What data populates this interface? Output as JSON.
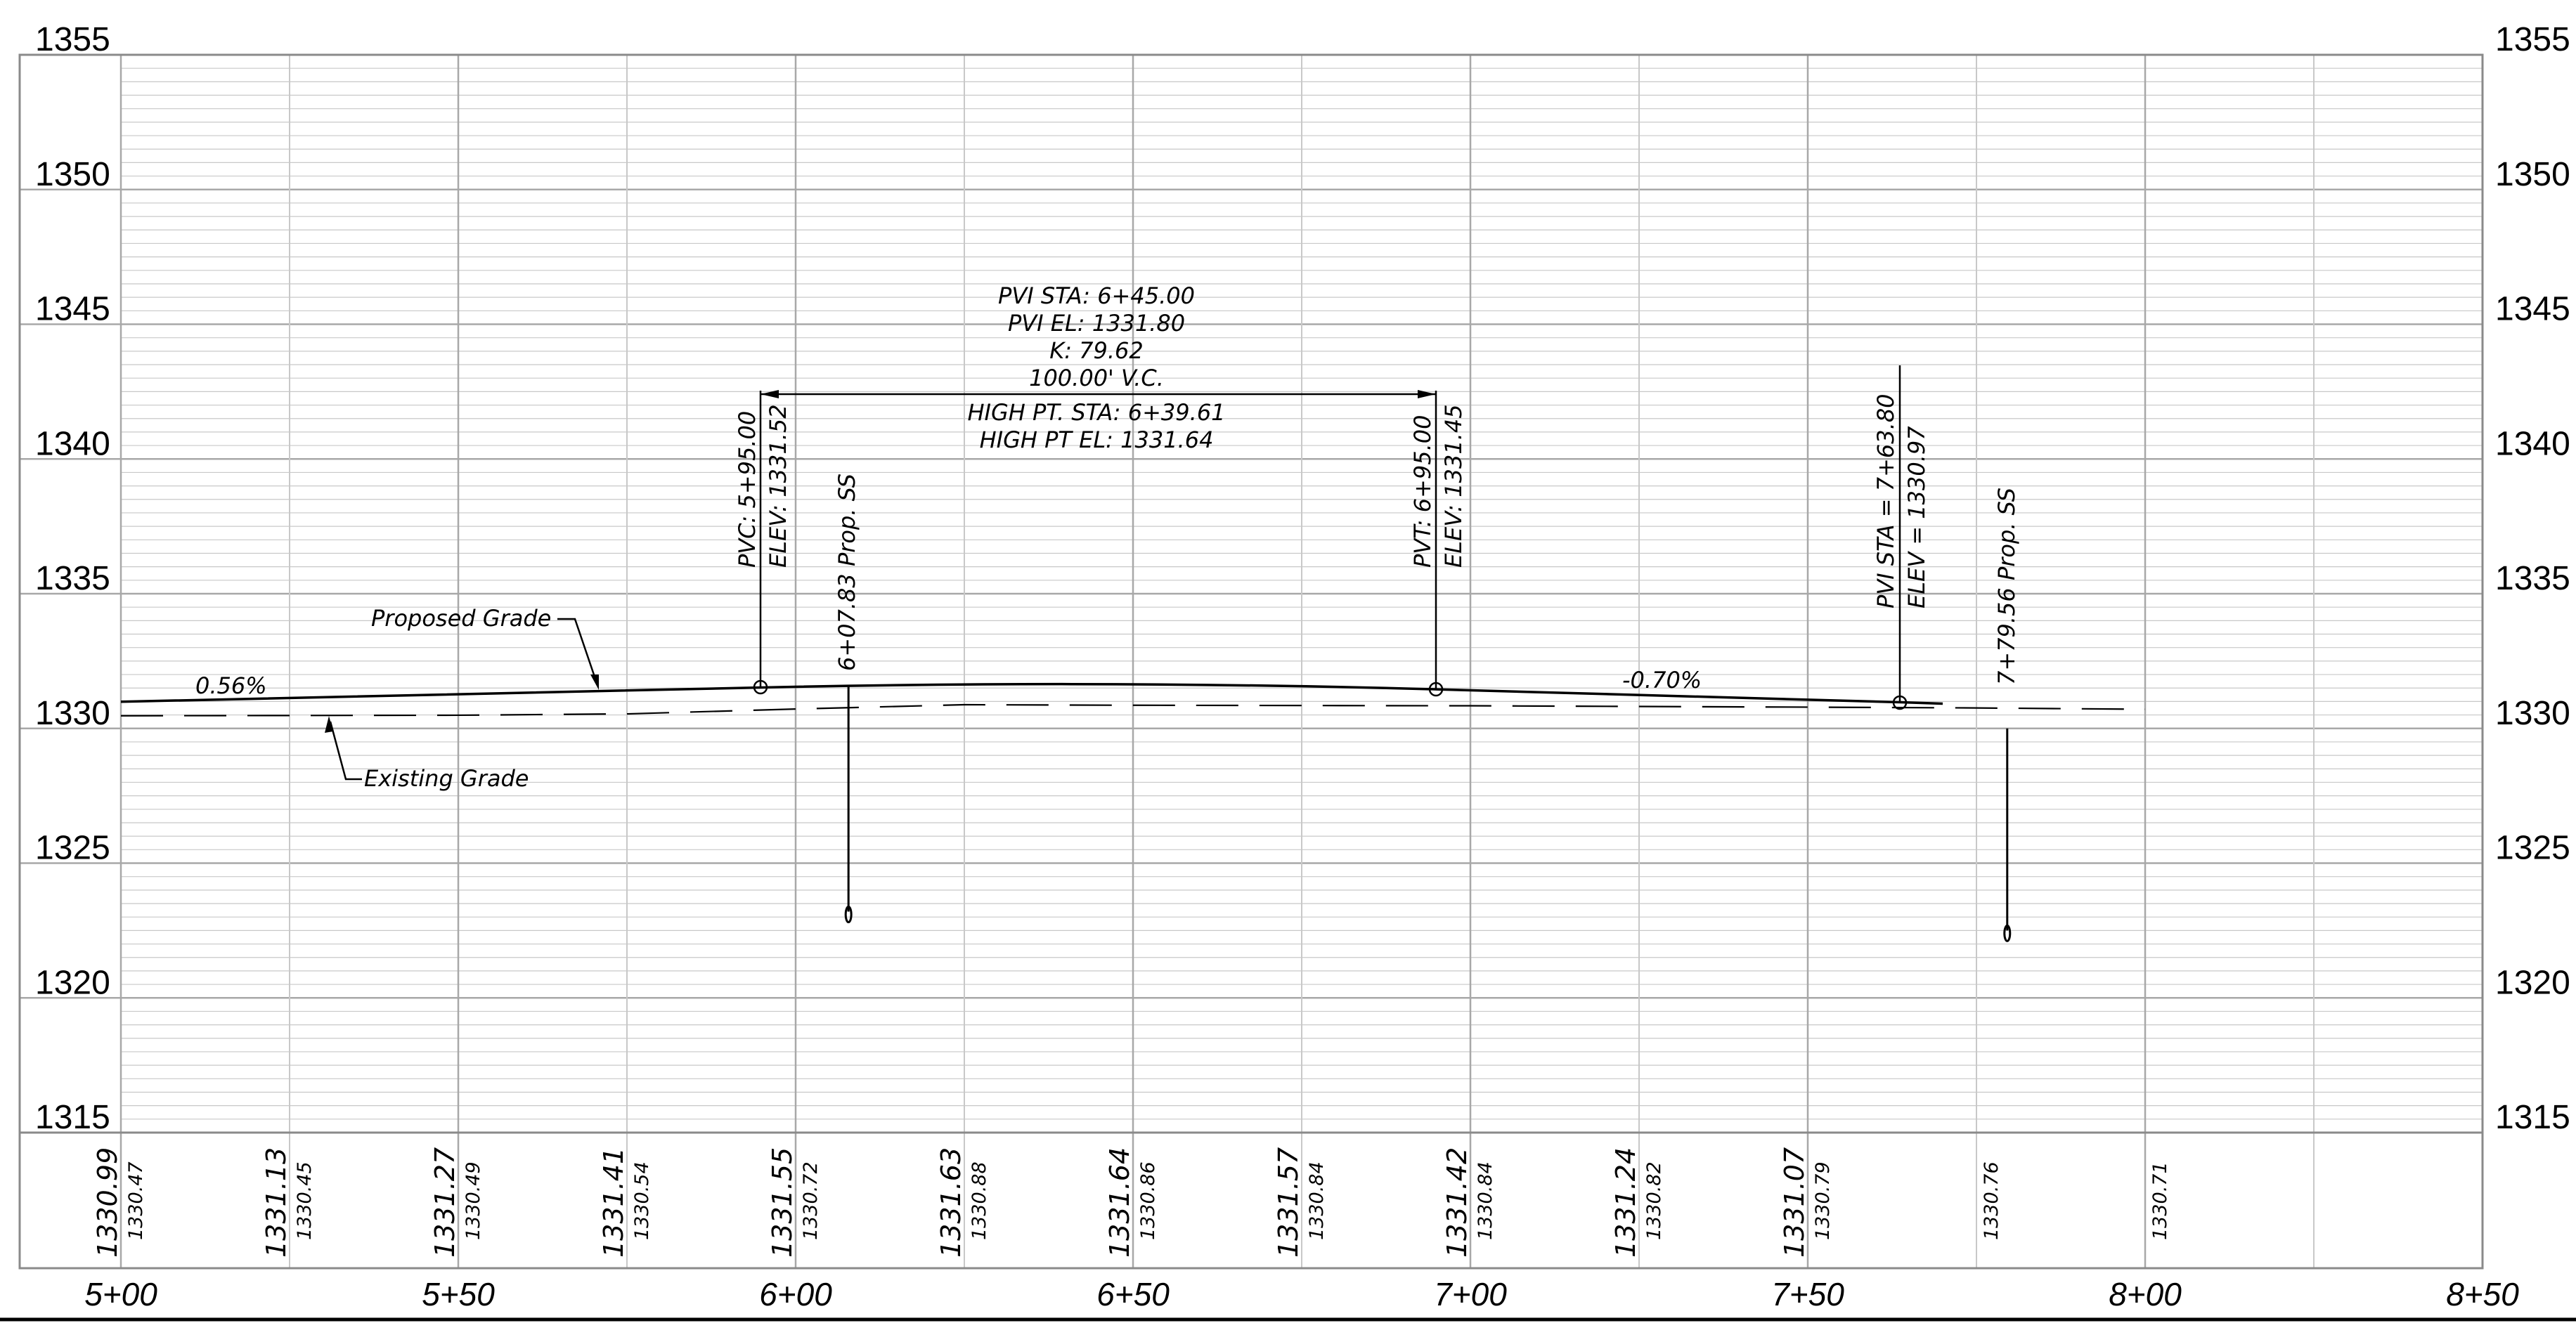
{
  "elevation_axis": {
    "labels": [
      "1355",
      "1350",
      "1345",
      "1340",
      "1335",
      "1330",
      "1325",
      "1320",
      "1315"
    ],
    "min": 1315,
    "max": 1355,
    "major_interval": 5,
    "minor_interval": 1
  },
  "station_axis": {
    "labels": [
      "5+00",
      "5+50",
      "6+00",
      "6+50",
      "7+00",
      "7+50",
      "8+00",
      "8+50"
    ],
    "start": 500,
    "end": 850,
    "interval": 25
  },
  "elevation_table": [
    {
      "station": 500,
      "proposed": "1330.99",
      "existing": "1330.47"
    },
    {
      "station": 525,
      "proposed": "1331.13",
      "existing": "1330.45"
    },
    {
      "station": 550,
      "proposed": "1331.27",
      "existing": "1330.49"
    },
    {
      "station": 575,
      "proposed": "1331.41",
      "existing": "1330.54"
    },
    {
      "station": 600,
      "proposed": "1331.55",
      "existing": "1330.72"
    },
    {
      "station": 625,
      "proposed": "1331.63",
      "existing": "1330.88"
    },
    {
      "station": 650,
      "proposed": "1331.64",
      "existing": "1330.86"
    },
    {
      "station": 675,
      "proposed": "1331.57",
      "existing": "1330.84"
    },
    {
      "station": 700,
      "proposed": "1331.42",
      "existing": "1330.84"
    },
    {
      "station": 725,
      "proposed": "1331.24",
      "existing": "1330.82"
    },
    {
      "station": 750,
      "proposed": "1331.07",
      "existing": "1330.79"
    },
    {
      "station": 775,
      "proposed": "",
      "existing": "1330.76"
    },
    {
      "station": 800,
      "proposed": "",
      "existing": "1330.71"
    }
  ],
  "grades": {
    "left": "0.56%",
    "right": "-0.70%"
  },
  "leaders": {
    "proposed": "Proposed Grade",
    "existing": "Existing Grade"
  },
  "vertical_curve": {
    "pvi_sta": "PVI STA: 6+45.00",
    "pvi_el": "PVI EL: 1331.80",
    "k": "K: 79.62",
    "length": "100.00' V.C.",
    "high_pt_sta": "HIGH PT. STA: 6+39.61",
    "high_pt_el": "HIGH PT EL: 1331.64"
  },
  "pvc": {
    "station": "PVC: 5+95.00",
    "elev": "ELEV: 1331.52"
  },
  "pvt": {
    "station": "PVT: 6+95.00",
    "elev": "ELEV: 1331.45"
  },
  "pvi2": {
    "station": "PVI STA = 7+63.80",
    "elev": "ELEV = 1330.97"
  },
  "structures": [
    {
      "label": "6+07.83 Prop. SS",
      "station": 607.83,
      "top_elev": 1331.6,
      "invert_elev": 1323.2
    },
    {
      "label": "7+79.56 Prop. SS",
      "station": 779.56,
      "top_elev": 1330.0,
      "invert_elev": 1322.5
    }
  ],
  "profile": {
    "proposed_points": [
      [
        500,
        1330.99
      ],
      [
        595,
        1331.52
      ],
      [
        645,
        1331.64
      ],
      [
        695,
        1331.45
      ],
      [
        763.8,
        1330.97
      ],
      [
        770,
        1330.92
      ]
    ],
    "existing_points": [
      [
        500,
        1330.47
      ],
      [
        550,
        1330.49
      ],
      [
        575,
        1330.54
      ],
      [
        600,
        1330.72
      ],
      [
        625,
        1330.88
      ],
      [
        650,
        1330.86
      ],
      [
        700,
        1330.84
      ],
      [
        750,
        1330.79
      ],
      [
        775,
        1330.76
      ],
      [
        800,
        1330.71
      ]
    ]
  },
  "colors": {
    "grid": "#c8c8c8",
    "major_grid": "#a8a8a8",
    "ink": "#000000"
  }
}
